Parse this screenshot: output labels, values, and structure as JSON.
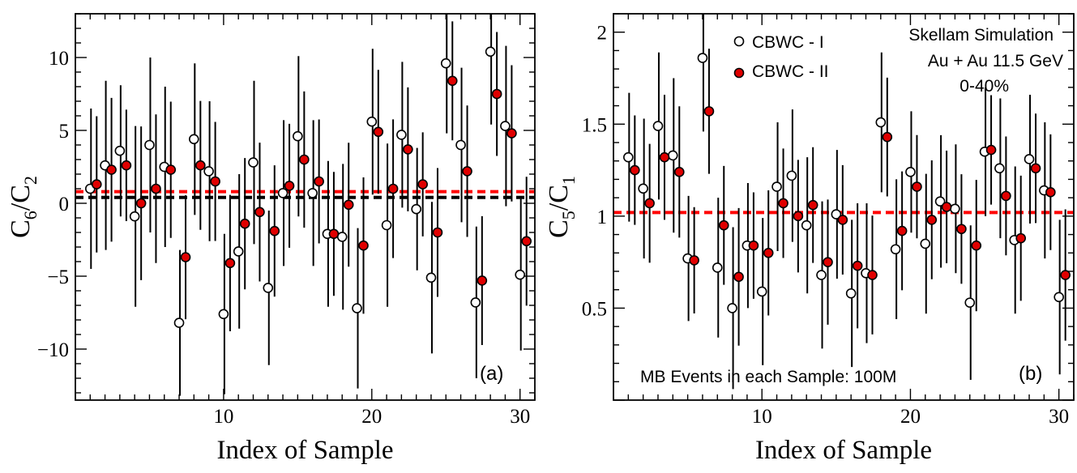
{
  "chart_data": [
    {
      "type": "scatter",
      "panel_label": "(a)",
      "xlabel": "Index of Sample",
      "ylabel_main": "C",
      "ylabel_sub1": "6",
      "ylabel_sep": "/C",
      "ylabel_sub2": "2",
      "xlim": [
        0,
        31
      ],
      "ylim": [
        -13.5,
        13
      ],
      "xticks": [
        10,
        20,
        30
      ],
      "yticks": [
        10,
        5,
        0,
        -5,
        -10
      ],
      "ytick_labels": [
        "10",
        "5",
        "0",
        "−5",
        "−10"
      ],
      "reference_lines": [
        {
          "y": 0.8,
          "color": "#ff0000"
        },
        {
          "y": 0.4,
          "color": "#000000"
        }
      ],
      "series": [
        {
          "marker": "open",
          "x": [
            1,
            2,
            3,
            4,
            5,
            6,
            7,
            8,
            9,
            10,
            11,
            12,
            13,
            14,
            15,
            16,
            17,
            18,
            19,
            20,
            21,
            22,
            23,
            24,
            25,
            26,
            27,
            28,
            29,
            30
          ],
          "y": [
            1.0,
            2.6,
            3.6,
            -0.9,
            4.0,
            2.5,
            -8.2,
            4.4,
            2.2,
            -7.6,
            -3.3,
            2.8,
            -5.8,
            0.7,
            4.6,
            0.7,
            -2.1,
            -2.3,
            -7.2,
            5.6,
            -1.5,
            4.7,
            -0.4,
            -5.1,
            9.6,
            4.0,
            -6.8,
            10.4,
            5.3,
            -4.9
          ],
          "err": [
            5.5,
            5.8,
            4.5,
            6.2,
            6.0,
            5.5,
            5.0,
            5.2,
            4.8,
            5.5,
            5.3,
            5.6,
            5.3,
            5.0,
            5.5,
            5.0,
            5.0,
            5.0,
            5.5,
            5.0,
            5.6,
            5.0,
            4.2,
            5.2,
            4.8,
            5.3,
            5.2,
            5.0,
            5.5,
            5.2
          ]
        },
        {
          "marker": "filled",
          "color": "#e00000",
          "x": [
            1,
            2,
            3,
            4,
            5,
            6,
            7,
            8,
            9,
            10,
            11,
            12,
            13,
            14,
            15,
            16,
            17,
            18,
            19,
            20,
            21,
            22,
            23,
            24,
            25,
            26,
            27,
            28,
            29,
            30
          ],
          "y": [
            1.3,
            2.3,
            2.6,
            0.0,
            1.0,
            2.3,
            -3.7,
            2.6,
            1.5,
            -4.1,
            -1.4,
            -0.6,
            -1.9,
            1.2,
            3.0,
            1.5,
            -2.1,
            -0.1,
            -2.9,
            4.9,
            1.0,
            3.7,
            1.3,
            -2.0,
            8.4,
            2.2,
            -5.3,
            7.5,
            4.8,
            -2.6
          ]
        }
      ]
    },
    {
      "type": "scatter",
      "panel_label": "(b)",
      "xlabel": "Index of Sample",
      "ylabel_main": "C",
      "ylabel_sub1": "5",
      "ylabel_sep": "/C",
      "ylabel_sub2": "1",
      "xlim": [
        0,
        31
      ],
      "ylim": [
        0,
        2.1
      ],
      "xticks": [
        10,
        20,
        30
      ],
      "yticks": [
        2,
        1.5,
        1,
        0.5
      ],
      "ytick_labels": [
        "2",
        "1.5",
        "1",
        "0.5"
      ],
      "reference_lines": [
        {
          "y": 1.02,
          "color": "#ff0000"
        }
      ],
      "legend": [
        "CBWC -  I",
        "CBWC - II"
      ],
      "annotations": [
        "Skellam Simulation",
        "Au + Au 11.5 GeV",
        "0-40%",
        "MB Events in each Sample: 100M"
      ],
      "series": [
        {
          "marker": "open",
          "x": [
            1,
            2,
            3,
            4,
            5,
            6,
            7,
            8,
            9,
            10,
            11,
            12,
            13,
            14,
            15,
            16,
            17,
            18,
            19,
            20,
            21,
            22,
            23,
            24,
            25,
            26,
            27,
            28,
            29,
            30
          ],
          "y": [
            1.32,
            1.15,
            1.49,
            1.33,
            0.77,
            1.86,
            0.72,
            0.5,
            0.84,
            0.59,
            1.16,
            1.22,
            0.95,
            0.68,
            1.01,
            0.58,
            0.69,
            1.51,
            0.82,
            1.24,
            0.85,
            1.08,
            1.04,
            0.53,
            1.35,
            1.26,
            0.87,
            1.31,
            1.14,
            0.56
          ],
          "err": [
            0.35,
            0.38,
            0.4,
            0.42,
            0.34,
            0.4,
            0.38,
            0.44,
            0.34,
            0.4,
            0.35,
            0.36,
            0.37,
            0.4,
            0.35,
            0.4,
            0.38,
            0.38,
            0.38,
            0.33,
            0.38,
            0.36,
            0.35,
            0.42,
            0.35,
            0.38,
            0.4,
            0.35,
            0.37,
            0.42
          ]
        },
        {
          "marker": "filled",
          "color": "#e00000",
          "x": [
            1,
            2,
            3,
            4,
            5,
            6,
            7,
            8,
            9,
            10,
            11,
            12,
            13,
            14,
            15,
            16,
            17,
            18,
            19,
            20,
            21,
            22,
            23,
            24,
            25,
            26,
            27,
            28,
            29,
            30
          ],
          "y": [
            1.25,
            1.07,
            1.32,
            1.24,
            0.76,
            1.57,
            0.95,
            0.67,
            0.84,
            0.8,
            1.07,
            1.0,
            1.06,
            0.75,
            0.98,
            0.73,
            0.68,
            1.43,
            0.92,
            1.16,
            0.98,
            1.05,
            0.93,
            0.84,
            1.36,
            1.11,
            0.88,
            1.26,
            1.13,
            0.68
          ]
        }
      ]
    }
  ]
}
